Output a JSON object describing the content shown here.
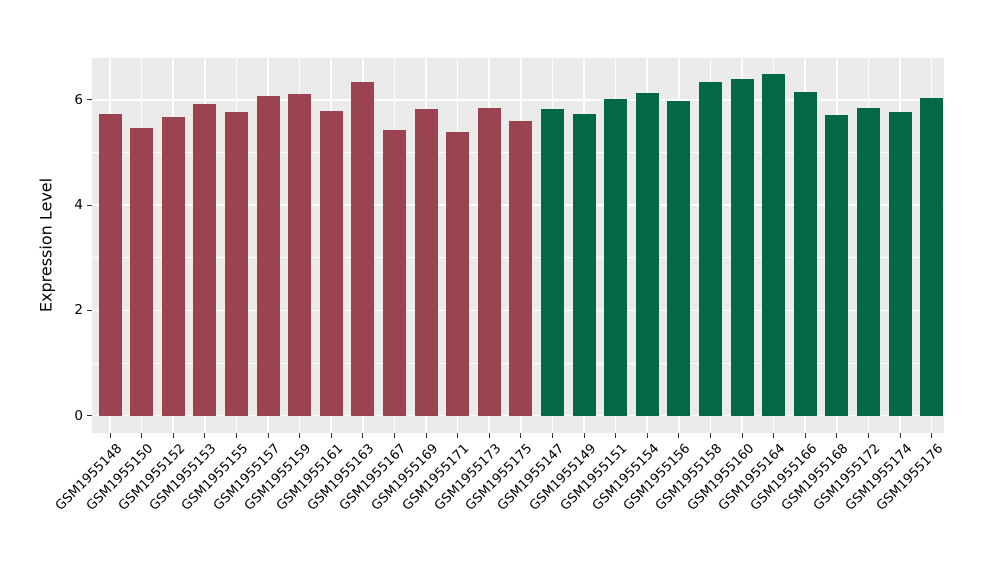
{
  "figure": {
    "background": "#ffffff"
  },
  "chart_data": {
    "type": "bar",
    "title": "",
    "xlabel": "",
    "ylabel": "Expression Level",
    "ylim": [
      0,
      6.8
    ],
    "yticks": [
      0,
      2,
      4,
      6
    ],
    "minor_yticks": [
      1,
      3,
      5
    ],
    "grid": true,
    "legend": "none",
    "panel_background": "#EBEBEB",
    "grid_color": "#FFFFFF",
    "axis_text_color": "#000000",
    "tick_mark_color": "#333333",
    "group_colors": {
      "left_group": "#9A4351",
      "right_group": "#026848"
    },
    "categories": [
      "GSM1955148",
      "GSM1955150",
      "GSM1955152",
      "GSM1955153",
      "GSM1955155",
      "GSM1955157",
      "GSM1955159",
      "GSM1955161",
      "GSM1955163",
      "GSM1955167",
      "GSM1955169",
      "GSM1955171",
      "GSM1955173",
      "GSM1955175",
      "GSM1955147",
      "GSM1955149",
      "GSM1955151",
      "GSM1955154",
      "GSM1955156",
      "GSM1955158",
      "GSM1955160",
      "GSM1955164",
      "GSM1955166",
      "GSM1955168",
      "GSM1955172",
      "GSM1955174",
      "GSM1955176"
    ],
    "values": [
      5.74,
      5.46,
      5.68,
      5.92,
      5.77,
      6.08,
      6.12,
      5.78,
      6.33,
      5.43,
      5.82,
      5.38,
      5.85,
      5.59,
      5.83,
      5.73,
      6.02,
      6.13,
      5.98,
      6.34,
      6.4,
      6.49,
      6.15,
      5.71,
      5.85,
      5.76,
      6.03
    ],
    "colors": [
      "#9A4351",
      "#9A4351",
      "#9A4351",
      "#9A4351",
      "#9A4351",
      "#9A4351",
      "#9A4351",
      "#9A4351",
      "#9A4351",
      "#9A4351",
      "#9A4351",
      "#9A4351",
      "#9A4351",
      "#9A4351",
      "#026848",
      "#026848",
      "#026848",
      "#026848",
      "#026848",
      "#026848",
      "#026848",
      "#026848",
      "#026848",
      "#026848",
      "#026848",
      "#026848",
      "#026848"
    ]
  }
}
